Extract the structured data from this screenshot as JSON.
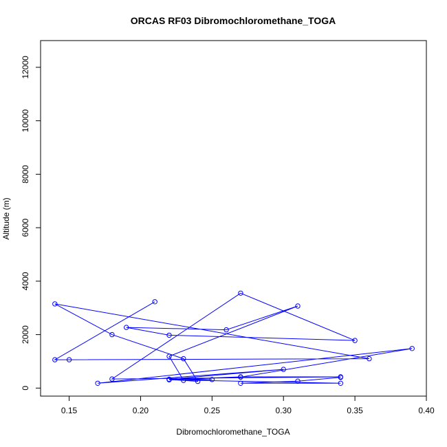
{
  "chart_data": {
    "type": "line",
    "title": "ORCAS RF03 Dibromochloromethane_TOGA",
    "xlabel": "Dibromochloromethane_TOGA",
    "ylabel": "Altitude (m)",
    "xlim": [
      0.13,
      0.4
    ],
    "ylim": [
      -300,
      13000
    ],
    "xticks": [
      0.15,
      0.2,
      0.25,
      0.3,
      0.35,
      0.4
    ],
    "xtick_labels": [
      "0.15",
      "0.20",
      "0.25",
      "0.30",
      "0.35",
      "0.40"
    ],
    "yticks": [
      0,
      2000,
      4000,
      6000,
      8000,
      10000,
      12000
    ],
    "ytick_labels": [
      "0",
      "2000",
      "4000",
      "6000",
      "8000",
      "10000",
      "12000"
    ],
    "grid": false,
    "series_color": "#0000ff",
    "series": [
      {
        "marker": "open-circle",
        "points": [
          {
            "x": 0.21,
            "y": 3230
          },
          {
            "x": 0.14,
            "y": 1060
          },
          {
            "x": 0.15,
            "y": 1060
          },
          {
            "x": 0.36,
            "y": 1100
          },
          {
            "x": 0.14,
            "y": 3150
          },
          {
            "x": 0.18,
            "y": 2000
          },
          {
            "x": 0.23,
            "y": 1100
          },
          {
            "x": 0.24,
            "y": 250
          },
          {
            "x": 0.22,
            "y": 320
          },
          {
            "x": 0.27,
            "y": 420
          },
          {
            "x": 0.34,
            "y": 420
          },
          {
            "x": 0.18,
            "y": 340
          },
          {
            "x": 0.27,
            "y": 3550
          },
          {
            "x": 0.35,
            "y": 1780
          },
          {
            "x": 0.22,
            "y": 1980
          },
          {
            "x": 0.19,
            "y": 2270
          },
          {
            "x": 0.26,
            "y": 2180
          },
          {
            "x": 0.31,
            "y": 3070
          },
          {
            "x": 0.22,
            "y": 1190
          },
          {
            "x": 0.23,
            "y": 290
          },
          {
            "x": 0.25,
            "y": 320
          },
          {
            "x": 0.22,
            "y": 330
          },
          {
            "x": 0.3,
            "y": 700
          },
          {
            "x": 0.17,
            "y": 180
          },
          {
            "x": 0.39,
            "y": 1480
          },
          {
            "x": 0.27,
            "y": 410
          },
          {
            "x": 0.22,
            "y": 310
          },
          {
            "x": 0.34,
            "y": 180
          },
          {
            "x": 0.27,
            "y": 180
          },
          {
            "x": 0.31,
            "y": 260
          },
          {
            "x": 0.34,
            "y": 400
          }
        ]
      }
    ]
  }
}
